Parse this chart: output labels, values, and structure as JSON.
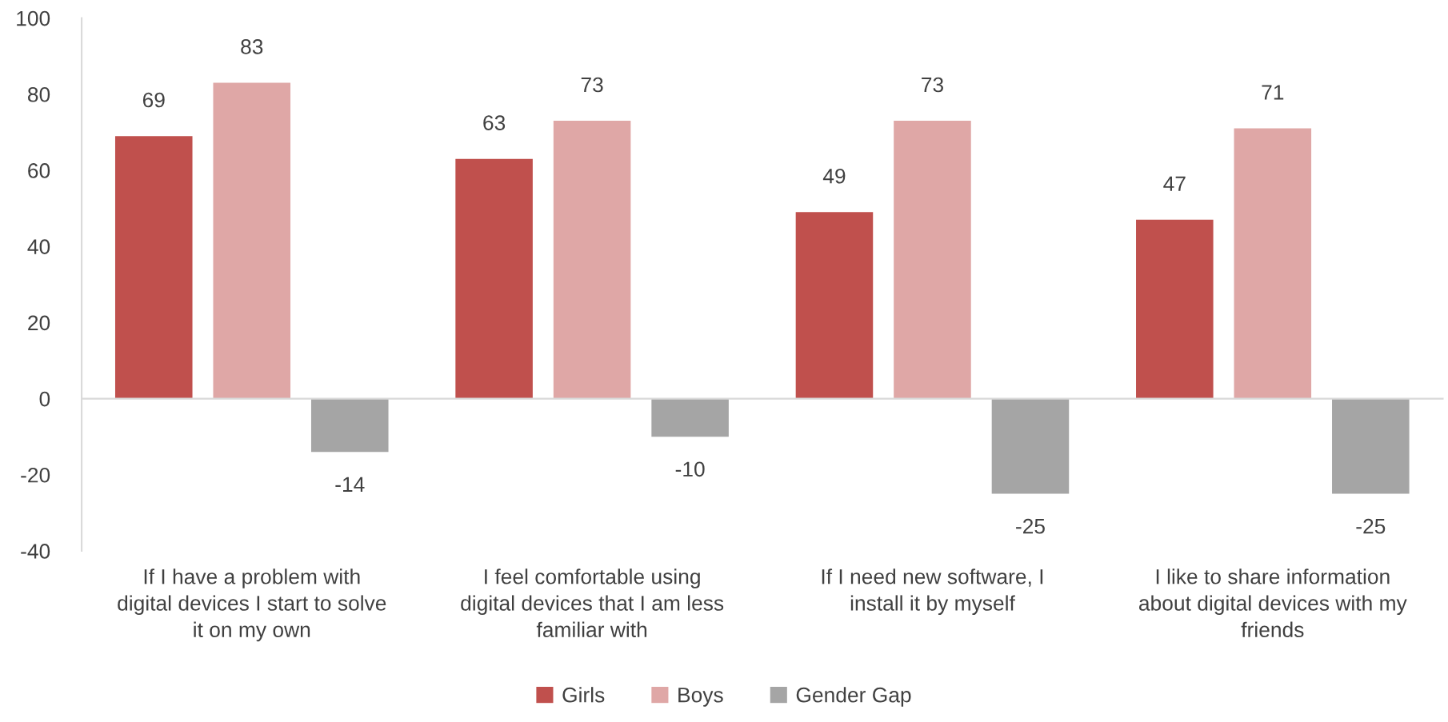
{
  "chart_data": {
    "type": "bar",
    "categories": [
      "If I have a problem with\ndigital devices I start to solve\nit on my own",
      "I feel comfortable using\ndigital devices that I am less\nfamiliar with",
      "If I need new software, I\ninstall it by myself",
      "I like to share information\nabout digital devices with my\nfriends"
    ],
    "series": [
      {
        "name": "Girls",
        "color": "#c0504d",
        "values": [
          69,
          63,
          49,
          47
        ]
      },
      {
        "name": "Boys",
        "color": "#dfa7a6",
        "values": [
          83,
          73,
          73,
          71
        ]
      },
      {
        "name": "Gender Gap",
        "color": "#a5a5a5",
        "values": [
          -14,
          -10,
          -25,
          -25
        ]
      }
    ],
    "ylim": [
      -40,
      100
    ],
    "yticks": [
      -40,
      -20,
      0,
      20,
      40,
      60,
      80,
      100
    ],
    "data_labels": true,
    "legend": "bottom"
  }
}
